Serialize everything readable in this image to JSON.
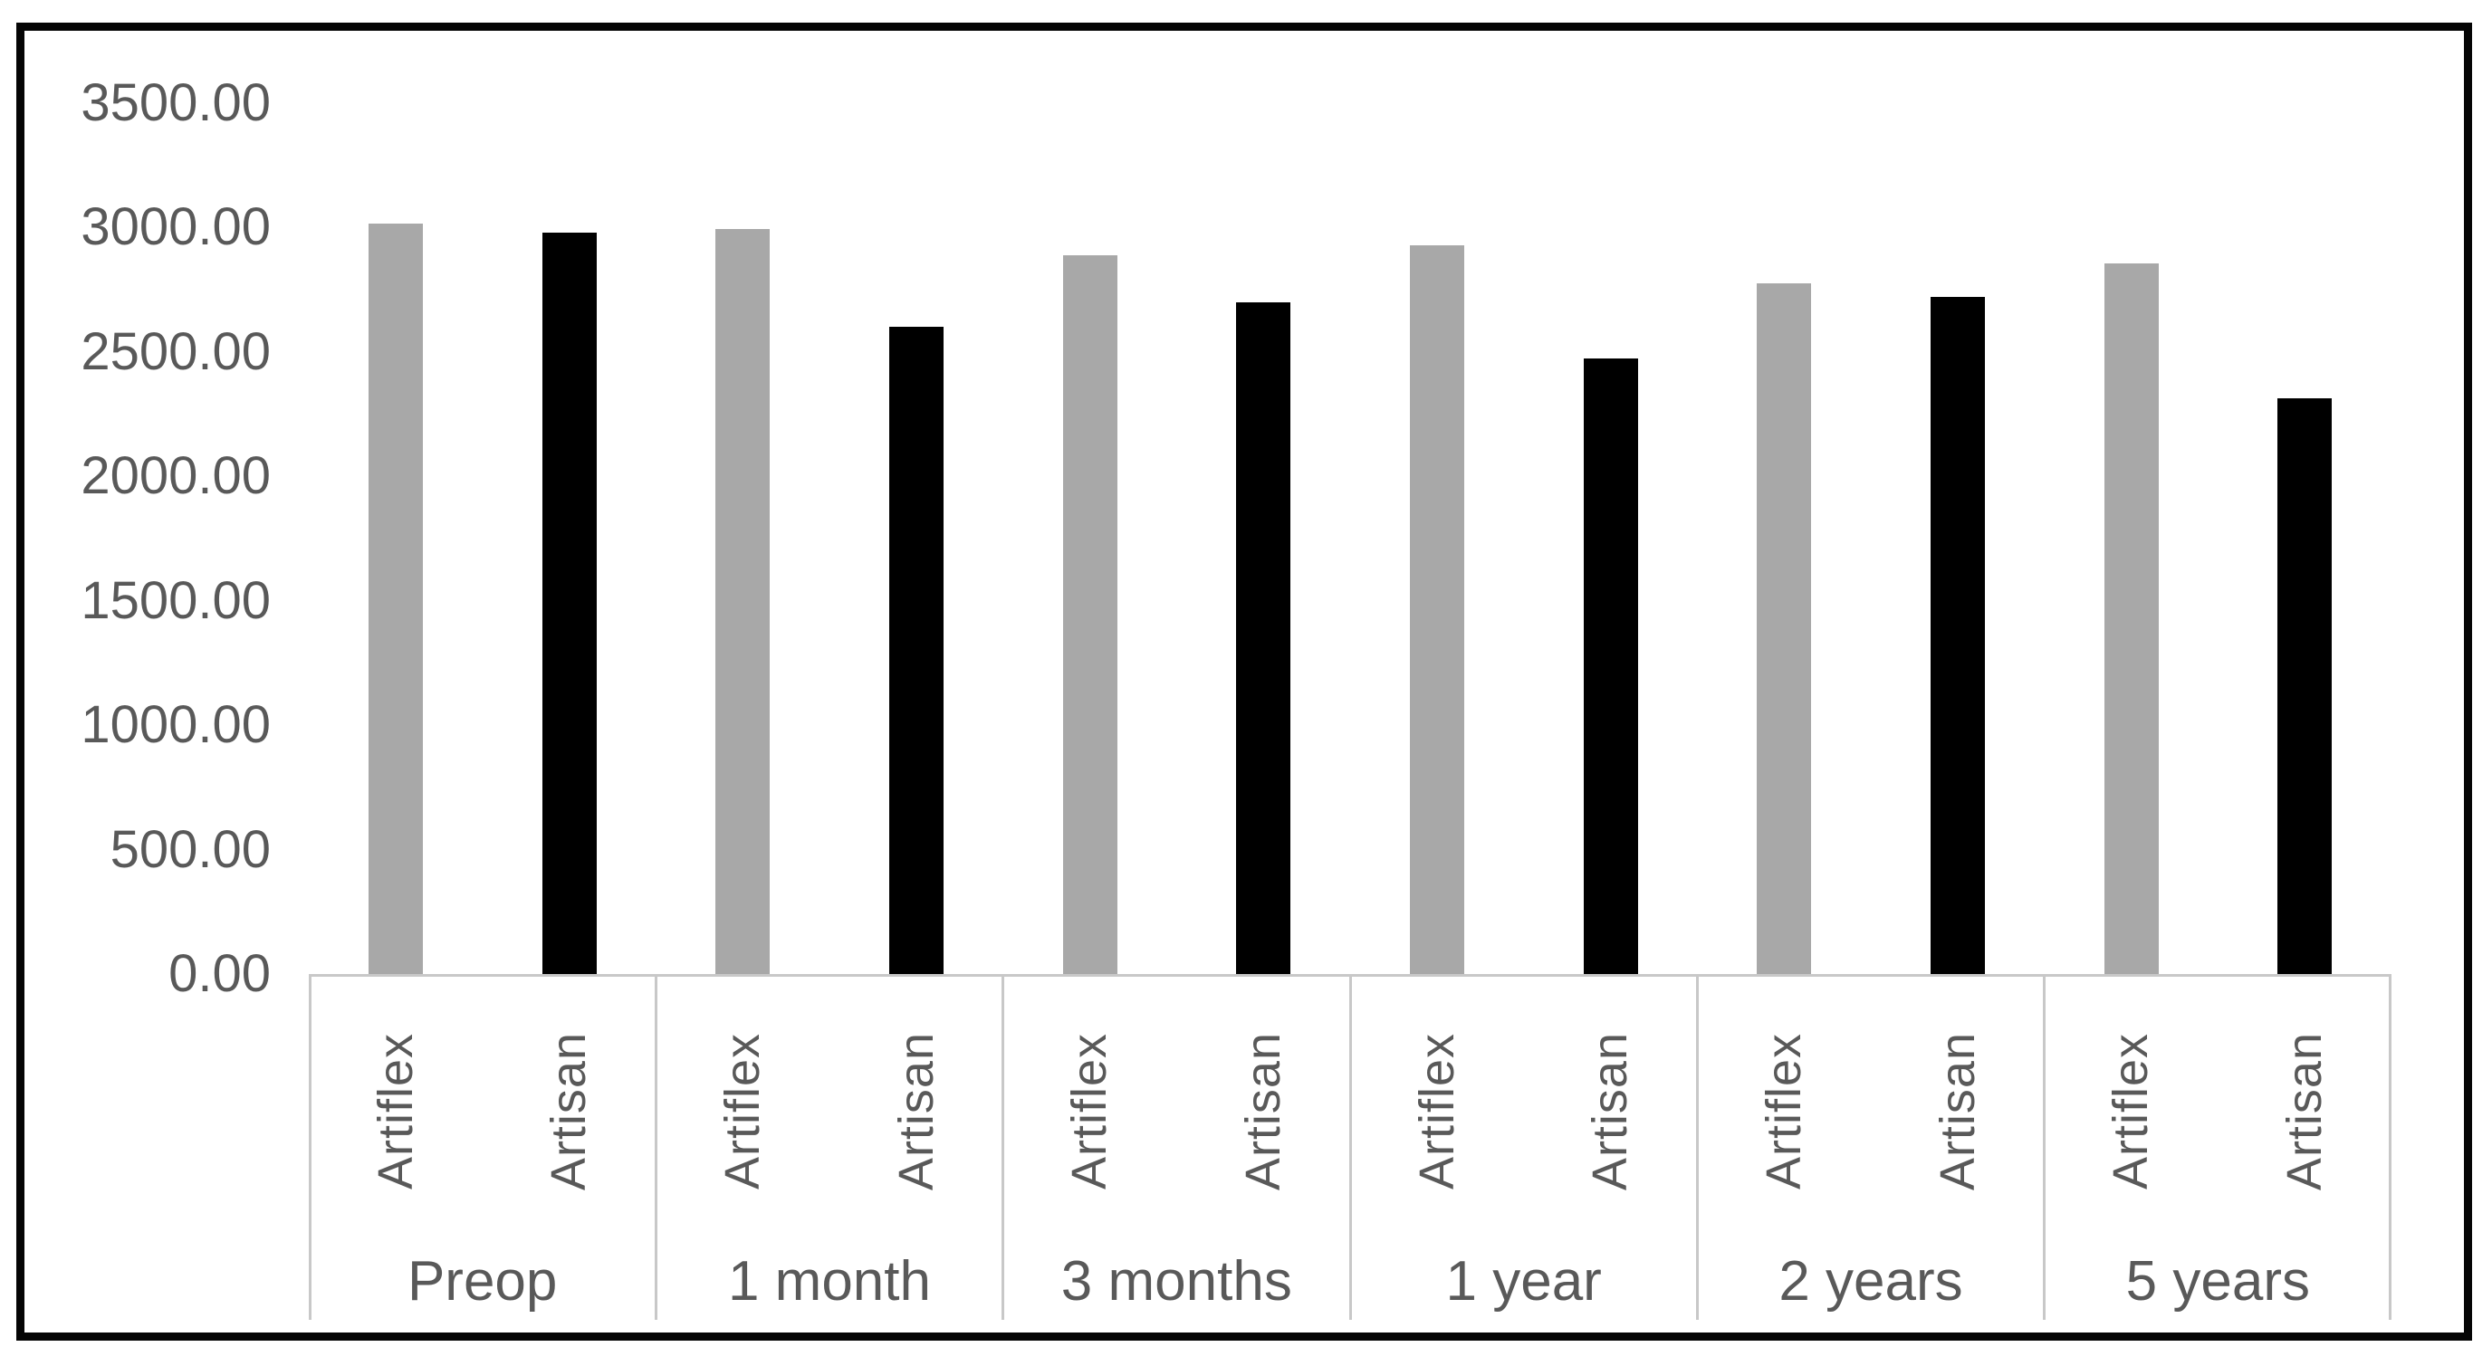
{
  "figure": {
    "background_color": "#ffffff",
    "frame_color": "#050505"
  },
  "chart_data": {
    "type": "bar",
    "title": "",
    "xlabel": "",
    "ylabel": "",
    "categories": [
      "Preop",
      "1 month",
      "3 months",
      "1 year",
      "2 years",
      "5 years"
    ],
    "series": [
      {
        "name": "Artiflex",
        "color": "#a8a8a8",
        "values": [
          3015,
          2995,
          2890,
          2930,
          2775,
          2855
        ]
      },
      {
        "name": "Artisan",
        "color": "#000000",
        "values": [
          2980,
          2600,
          2700,
          2475,
          2720,
          2315
        ]
      }
    ],
    "bar_sublabels": [
      "Artiflex",
      "Artisan"
    ],
    "ylim": [
      0,
      3500
    ],
    "ytick_step": 500,
    "ytick_labels": [
      "0.00",
      "500.00",
      "1000.00",
      "1500.00",
      "2000.00",
      "2500.00",
      "3000.00",
      "3500.00"
    ],
    "grid": false,
    "legend_position": "none",
    "axis_text_color": "#595959",
    "axis_line_color": "#c8c8c8"
  }
}
